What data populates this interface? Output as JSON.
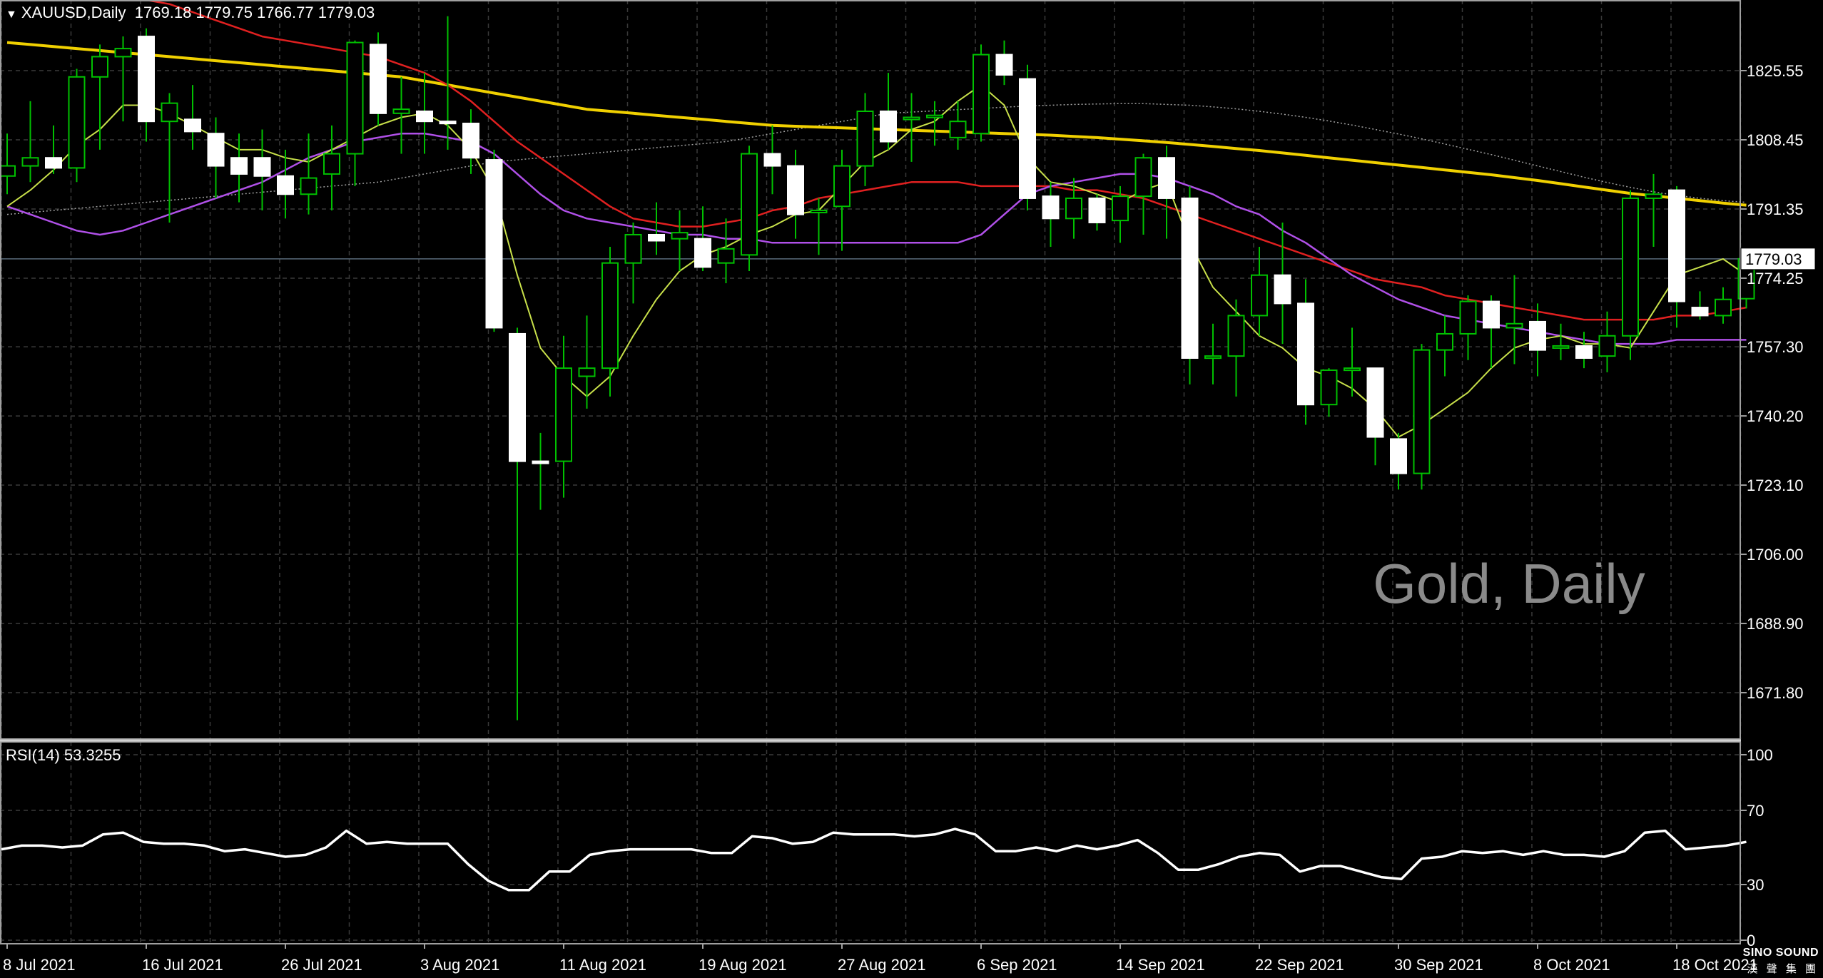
{
  "header": {
    "symbol": "XAUUSD,Daily",
    "ohlc": "1769.18 1779.75 1766.77 1779.03",
    "indicator": "RSI(14) 53.3255"
  },
  "watermark": "Gold, Daily",
  "logo": {
    "name": "SINO SOUND",
    "subtitle": "漢 聲 集 團"
  },
  "colors": {
    "background": "#000000",
    "grid": "#3a3a3a",
    "candle_up_body": "#000000",
    "candle_down_body": "#ffffff",
    "wick": "#00c000",
    "ma_fast": "#c8e04a",
    "ma_mid": "#b050e8",
    "ma_red": "#e02020",
    "ma_yellow": "#f0d000",
    "ma_dotted": "#a0a0a0",
    "rsi_line": "#ffffff",
    "watermark": "#8a8a8a",
    "current_price_line": "#5a6a7a"
  },
  "chart_data": [
    {
      "type": "candlestick",
      "symbol": "XAUUSD",
      "timeframe": "Daily",
      "title": "XAUUSD,Daily",
      "current_price": "1779.03",
      "y_ticks": [
        "1825.55",
        "1808.45",
        "1791.35",
        "1774.25",
        "1757.30",
        "1740.20",
        "1723.10",
        "1706.00",
        "1688.90",
        "1671.80"
      ],
      "x_ticks": [
        {
          "label": "8 Jul 2021",
          "index": 0
        },
        {
          "label": "16 Jul 2021",
          "index": 6
        },
        {
          "label": "26 Jul 2021",
          "index": 12
        },
        {
          "label": "3 Aug 2021",
          "index": 18
        },
        {
          "label": "11 Aug 2021",
          "index": 24
        },
        {
          "label": "19 Aug 2021",
          "index": 30
        },
        {
          "label": "27 Aug 2021",
          "index": 36
        },
        {
          "label": "6 Sep 2021",
          "index": 42
        },
        {
          "label": "14 Sep 2021",
          "index": 48
        },
        {
          "label": "22 Sep 2021",
          "index": 54
        },
        {
          "label": "30 Sep 2021",
          "index": 60
        },
        {
          "label": "8 Oct 2021",
          "index": 66
        },
        {
          "label": "18 Oct 2021",
          "index": 72
        }
      ],
      "ylim": [
        1663,
        1842
      ],
      "grid": true,
      "ohlc": [
        {
          "o": 1799.5,
          "h": 1810.0,
          "l": 1795.0,
          "c": 1802.0
        },
        {
          "o": 1802.0,
          "h": 1818.0,
          "l": 1798.0,
          "c": 1804.0
        },
        {
          "o": 1804.0,
          "h": 1812.0,
          "l": 1800.0,
          "c": 1801.5
        },
        {
          "o": 1801.5,
          "h": 1826.0,
          "l": 1798.0,
          "c": 1824.0
        },
        {
          "o": 1824.0,
          "h": 1832.0,
          "l": 1806.0,
          "c": 1829.0
        },
        {
          "o": 1829.0,
          "h": 1834.0,
          "l": 1813.0,
          "c": 1831.0
        },
        {
          "o": 1834.0,
          "h": 1836.0,
          "l": 1808.0,
          "c": 1813.0
        },
        {
          "o": 1813.0,
          "h": 1820.0,
          "l": 1788.0,
          "c": 1817.5
        },
        {
          "o": 1813.5,
          "h": 1822.0,
          "l": 1806.0,
          "c": 1810.5
        },
        {
          "o": 1810.0,
          "h": 1814.0,
          "l": 1794.0,
          "c": 1802.0
        },
        {
          "o": 1804.0,
          "h": 1810.0,
          "l": 1793.0,
          "c": 1800.0
        },
        {
          "o": 1804.0,
          "h": 1811.0,
          "l": 1791.0,
          "c": 1799.5
        },
        {
          "o": 1799.5,
          "h": 1806.0,
          "l": 1789.0,
          "c": 1795.0
        },
        {
          "o": 1795.0,
          "h": 1810.0,
          "l": 1790.0,
          "c": 1799.0
        },
        {
          "o": 1800.0,
          "h": 1812.0,
          "l": 1791.0,
          "c": 1805.0
        },
        {
          "o": 1805.0,
          "h": 1833.0,
          "l": 1797.0,
          "c": 1832.5
        },
        {
          "o": 1832.0,
          "h": 1835.0,
          "l": 1812.0,
          "c": 1815.0
        },
        {
          "o": 1815.0,
          "h": 1824.0,
          "l": 1805.0,
          "c": 1816.0
        },
        {
          "o": 1815.5,
          "h": 1825.0,
          "l": 1805.0,
          "c": 1813.0
        },
        {
          "o": 1813.0,
          "h": 1839.0,
          "l": 1806.0,
          "c": 1812.5
        },
        {
          "o": 1812.5,
          "h": 1816.0,
          "l": 1800.0,
          "c": 1804.0
        },
        {
          "o": 1803.5,
          "h": 1806.0,
          "l": 1761.0,
          "c": 1762.0
        },
        {
          "o": 1760.5,
          "h": 1762.0,
          "l": 1665.0,
          "c": 1729.0
        },
        {
          "o": 1729.0,
          "h": 1736.0,
          "l": 1717.0,
          "c": 1728.5
        },
        {
          "o": 1729.0,
          "h": 1760.0,
          "l": 1720.0,
          "c": 1752.0
        },
        {
          "o": 1750.0,
          "h": 1765.0,
          "l": 1742.0,
          "c": 1752.0
        },
        {
          "o": 1752.0,
          "h": 1782.0,
          "l": 1745.0,
          "c": 1778.0
        },
        {
          "o": 1778.0,
          "h": 1788.0,
          "l": 1768.0,
          "c": 1785.0
        },
        {
          "o": 1785.0,
          "h": 1793.0,
          "l": 1780.0,
          "c": 1783.5
        },
        {
          "o": 1784.0,
          "h": 1791.0,
          "l": 1776.0,
          "c": 1785.5
        },
        {
          "o": 1784.0,
          "h": 1792.0,
          "l": 1776.0,
          "c": 1777.0
        },
        {
          "o": 1778.0,
          "h": 1789.0,
          "l": 1773.0,
          "c": 1781.5
        },
        {
          "o": 1780.0,
          "h": 1807.0,
          "l": 1776.0,
          "c": 1805.0
        },
        {
          "o": 1805.0,
          "h": 1812.0,
          "l": 1795.0,
          "c": 1802.0
        },
        {
          "o": 1802.0,
          "h": 1806.0,
          "l": 1784.0,
          "c": 1790.0
        },
        {
          "o": 1791.0,
          "h": 1794.0,
          "l": 1780.0,
          "c": 1791.0
        },
        {
          "o": 1792.0,
          "h": 1806.0,
          "l": 1781.0,
          "c": 1802.0
        },
        {
          "o": 1802.0,
          "h": 1820.0,
          "l": 1797.0,
          "c": 1815.5
        },
        {
          "o": 1815.5,
          "h": 1825.0,
          "l": 1806.0,
          "c": 1808.0
        },
        {
          "o": 1814.0,
          "h": 1820.0,
          "l": 1803.0,
          "c": 1814.0
        },
        {
          "o": 1814.0,
          "h": 1818.0,
          "l": 1807.0,
          "c": 1814.5
        },
        {
          "o": 1809.0,
          "h": 1818.0,
          "l": 1806.0,
          "c": 1813.0
        },
        {
          "o": 1810.0,
          "h": 1832.0,
          "l": 1808.0,
          "c": 1829.5
        },
        {
          "o": 1829.5,
          "h": 1833.0,
          "l": 1822.0,
          "c": 1824.5
        },
        {
          "o": 1823.5,
          "h": 1827.0,
          "l": 1791.0,
          "c": 1794.0
        },
        {
          "o": 1794.5,
          "h": 1798.0,
          "l": 1782.0,
          "c": 1789.0
        },
        {
          "o": 1789.0,
          "h": 1799.0,
          "l": 1784.0,
          "c": 1794.0
        },
        {
          "o": 1794.0,
          "h": 1795.0,
          "l": 1786.0,
          "c": 1788.0
        },
        {
          "o": 1788.5,
          "h": 1797.0,
          "l": 1783.0,
          "c": 1794.5
        },
        {
          "o": 1794.5,
          "h": 1805.0,
          "l": 1785.0,
          "c": 1804.0
        },
        {
          "o": 1804.0,
          "h": 1807.0,
          "l": 1784.0,
          "c": 1794.0
        },
        {
          "o": 1794.0,
          "h": 1797.0,
          "l": 1748.0,
          "c": 1754.5
        },
        {
          "o": 1754.5,
          "h": 1763.0,
          "l": 1748.0,
          "c": 1755.0
        },
        {
          "o": 1755.0,
          "h": 1769.0,
          "l": 1745.0,
          "c": 1765.0
        },
        {
          "o": 1765.0,
          "h": 1782.0,
          "l": 1760.0,
          "c": 1775.0
        },
        {
          "o": 1775.0,
          "h": 1788.0,
          "l": 1758.0,
          "c": 1768.0
        },
        {
          "o": 1768.0,
          "h": 1774.0,
          "l": 1738.0,
          "c": 1743.0
        },
        {
          "o": 1743.0,
          "h": 1752.0,
          "l": 1740.0,
          "c": 1751.5
        },
        {
          "o": 1751.5,
          "h": 1762.0,
          "l": 1745.0,
          "c": 1752.0
        },
        {
          "o": 1752.0,
          "h": 1752.0,
          "l": 1728.0,
          "c": 1735.0
        },
        {
          "o": 1734.5,
          "h": 1736.0,
          "l": 1722.0,
          "c": 1726.0
        },
        {
          "o": 1726.0,
          "h": 1758.0,
          "l": 1722.0,
          "c": 1756.5
        },
        {
          "o": 1756.5,
          "h": 1765.0,
          "l": 1750.0,
          "c": 1760.5
        },
        {
          "o": 1760.5,
          "h": 1770.0,
          "l": 1754.0,
          "c": 1768.5
        },
        {
          "o": 1768.5,
          "h": 1770.0,
          "l": 1752.0,
          "c": 1762.0
        },
        {
          "o": 1762.0,
          "h": 1775.0,
          "l": 1753.0,
          "c": 1763.0
        },
        {
          "o": 1763.5,
          "h": 1768.0,
          "l": 1750.0,
          "c": 1756.5
        },
        {
          "o": 1757.0,
          "h": 1763.0,
          "l": 1754.0,
          "c": 1757.5
        },
        {
          "o": 1757.5,
          "h": 1761.0,
          "l": 1752.0,
          "c": 1754.5
        },
        {
          "o": 1755.0,
          "h": 1766.0,
          "l": 1751.0,
          "c": 1760.0
        },
        {
          "o": 1760.0,
          "h": 1796.0,
          "l": 1754.0,
          "c": 1794.0
        },
        {
          "o": 1794.0,
          "h": 1800.0,
          "l": 1782.0,
          "c": 1795.0
        },
        {
          "o": 1796.0,
          "h": 1797.0,
          "l": 1762.0,
          "c": 1768.5
        },
        {
          "o": 1767.0,
          "h": 1771.0,
          "l": 1764.0,
          "c": 1765.0
        },
        {
          "o": 1765.0,
          "h": 1772.0,
          "l": 1763.0,
          "c": 1769.0
        },
        {
          "o": 1769.18,
          "h": 1779.75,
          "l": 1766.77,
          "c": 1779.03
        }
      ],
      "ma_fast": [
        1792,
        1796,
        1801,
        1807,
        1811,
        1817,
        1817,
        1815,
        1812,
        1809,
        1806,
        1806,
        1804,
        1803,
        1806,
        1809,
        1812,
        1814,
        1815,
        1812,
        1806,
        1796,
        1775,
        1757,
        1750,
        1745,
        1750,
        1760,
        1769,
        1776,
        1780,
        1782,
        1785,
        1787,
        1790,
        1791,
        1797,
        1803,
        1806,
        1811,
        1813,
        1818,
        1822,
        1817,
        1804,
        1798,
        1797,
        1795,
        1793,
        1796,
        1798,
        1783,
        1772,
        1766,
        1760,
        1757,
        1752,
        1750,
        1747,
        1742,
        1735,
        1738,
        1742,
        1746,
        1752,
        1757,
        1759,
        1760,
        1758,
        1758,
        1757,
        1766,
        1775,
        1777,
        1779,
        1775
      ],
      "ma_mid": [
        1792,
        1790,
        1788,
        1786,
        1785,
        1786,
        1788,
        1790,
        1792,
        1794,
        1796,
        1798,
        1801,
        1804,
        1806,
        1808,
        1809,
        1810,
        1810,
        1809,
        1808,
        1805,
        1800,
        1795,
        1791,
        1789,
        1788,
        1787,
        1786,
        1785,
        1785,
        1784,
        1784,
        1783,
        1783,
        1783,
        1783,
        1783,
        1783,
        1783,
        1783,
        1783,
        1785,
        1790,
        1795,
        1797,
        1798,
        1799,
        1800,
        1800,
        1799,
        1797,
        1795,
        1792,
        1790,
        1786,
        1783,
        1779,
        1775,
        1772,
        1769,
        1767,
        1765,
        1764,
        1763,
        1762,
        1761,
        1760,
        1759,
        1758,
        1758,
        1758,
        1759,
        1759,
        1759,
        1759
      ],
      "ma_red": [
        1847,
        1847,
        1846,
        1846,
        1845,
        1844,
        1843,
        1842,
        1840,
        1838,
        1836,
        1834,
        1833,
        1832,
        1831,
        1830,
        1829,
        1827,
        1825,
        1822,
        1818,
        1813,
        1808,
        1804,
        1800,
        1796,
        1792,
        1789,
        1788,
        1787,
        1787,
        1788,
        1789,
        1791,
        1792,
        1794,
        1795,
        1796,
        1797,
        1798,
        1798,
        1798,
        1797,
        1797,
        1797,
        1797,
        1796,
        1796,
        1795,
        1794,
        1792,
        1790,
        1788,
        1786,
        1784,
        1782,
        1780,
        1778,
        1776,
        1774,
        1773,
        1772,
        1770,
        1769,
        1768,
        1767,
        1766,
        1765,
        1764,
        1764,
        1764,
        1764,
        1765,
        1765,
        1766,
        1767
      ],
      "ma_yellow": [
        1832.5,
        1832,
        1831.5,
        1831,
        1830.5,
        1830,
        1829.5,
        1829,
        1828.5,
        1828,
        1827.5,
        1827,
        1826.5,
        1826,
        1825.5,
        1825,
        1824.5,
        1824,
        1823,
        1822,
        1821,
        1820,
        1819,
        1818,
        1817,
        1816,
        1815.5,
        1815,
        1814.5,
        1814,
        1813.5,
        1813,
        1812.5,
        1812,
        1811.8,
        1811.6,
        1811.4,
        1811.2,
        1811,
        1810.8,
        1810.6,
        1810.4,
        1810.2,
        1810,
        1809.8,
        1809.6,
        1809.3,
        1809,
        1808.6,
        1808.2,
        1807.8,
        1807.3,
        1806.8,
        1806.3,
        1805.8,
        1805.2,
        1804.6,
        1804,
        1803.4,
        1802.8,
        1802.2,
        1801.6,
        1801,
        1800.4,
        1799.8,
        1799.1,
        1798.4,
        1797.6,
        1796.8,
        1796,
        1795.2,
        1794.6,
        1794,
        1793.4,
        1792.8,
        1792.3
      ],
      "ma_dotted": [
        1790,
        1790.5,
        1791,
        1791.5,
        1792,
        1792.5,
        1793,
        1793.5,
        1794,
        1794.5,
        1795,
        1795.5,
        1796,
        1796.5,
        1797,
        1797.5,
        1798,
        1799,
        1800,
        1801,
        1802,
        1803,
        1803.5,
        1804,
        1804.5,
        1805,
        1805.5,
        1806,
        1806.5,
        1807,
        1807.5,
        1808,
        1809,
        1810,
        1811,
        1812,
        1813,
        1814,
        1815,
        1815.3,
        1815.6,
        1815.9,
        1816.2,
        1816.5,
        1816.8,
        1817,
        1817.2,
        1817.3,
        1817.4,
        1817.4,
        1817.2,
        1817,
        1816.6,
        1816.1,
        1815.5,
        1814.8,
        1814,
        1813.1,
        1812.1,
        1811,
        1809.9,
        1808.7,
        1807.4,
        1806.1,
        1804.8,
        1803.4,
        1802,
        1800.6,
        1799.2,
        1797.9,
        1796.7,
        1795.6,
        1794.7,
        1794,
        1793.4,
        1793
      ]
    },
    {
      "type": "line",
      "title": "RSI(14) 53.3255",
      "ylim": [
        0,
        100
      ],
      "y_ticks": [
        "100",
        "70",
        "30",
        "0"
      ],
      "values": [
        49,
        51,
        51,
        50,
        51,
        57,
        58,
        53,
        52,
        52,
        51,
        48,
        49,
        47,
        45,
        46,
        50,
        59,
        52,
        53,
        52,
        52,
        52,
        41,
        32,
        27,
        27,
        37,
        37,
        46,
        48,
        49,
        49,
        49,
        49,
        47,
        47,
        56,
        55,
        52,
        53,
        58,
        57,
        57,
        57,
        56,
        57,
        60,
        57,
        48,
        48,
        50,
        48,
        51,
        49,
        51,
        54,
        47,
        38,
        38,
        41,
        45,
        47,
        46,
        37,
        40,
        40,
        37,
        34,
        33,
        44,
        45,
        48,
        47,
        48,
        46,
        48,
        46,
        46,
        45,
        48,
        58,
        59,
        49,
        50,
        51,
        53
      ]
    }
  ]
}
